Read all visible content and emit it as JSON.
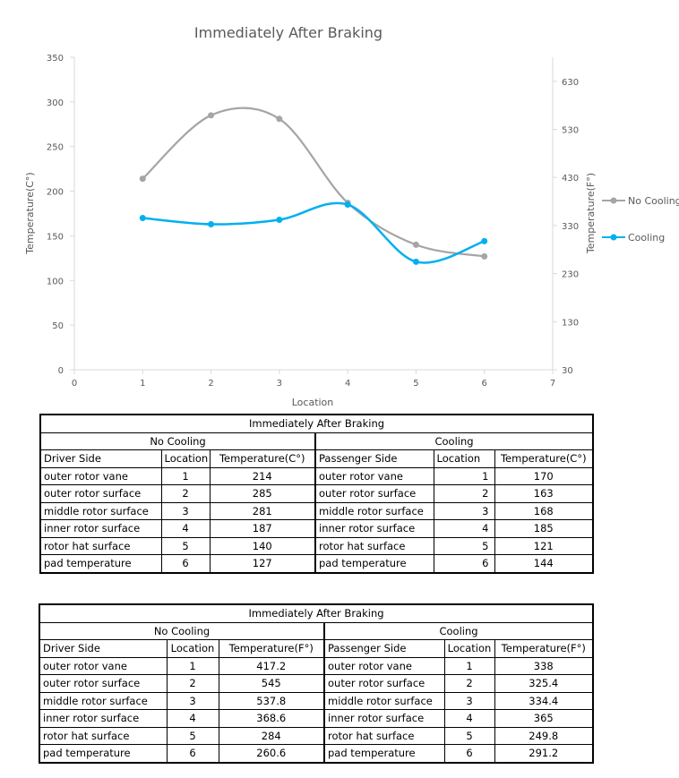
{
  "chart_data": {
    "type": "line",
    "title": "Immediately After Braking",
    "xlabel": "Location",
    "ylabel": "Temperature(C°)",
    "y2label": "Temperature(F°)",
    "xlim": [
      0,
      7
    ],
    "ylim": [
      0,
      350
    ],
    "y2lim": [
      30,
      680
    ],
    "xticks": [
      "0",
      "1",
      "2",
      "3",
      "4",
      "5",
      "6",
      "7"
    ],
    "yticks": [
      "0",
      "50",
      "100",
      "150",
      "200",
      "250",
      "300",
      "350"
    ],
    "y2ticks": [
      "30",
      "130",
      "230",
      "330",
      "430",
      "530",
      "630"
    ],
    "x": [
      1,
      2,
      3,
      4,
      5,
      6
    ],
    "series": [
      {
        "name": "No Cooling",
        "values": [
          214,
          285,
          281,
          187,
          140,
          127
        ],
        "color": "#a5a5a5"
      },
      {
        "name": "Cooling",
        "values": [
          170,
          163,
          168,
          185,
          121,
          144
        ],
        "color": "#00b0f0"
      }
    ],
    "grid": false,
    "legend": "right",
    "smooth": true
  },
  "table_c": {
    "title": "Immediately After Braking",
    "left_group": "No Cooling",
    "right_group": "Cooling",
    "left_headers": [
      "Driver Side",
      "Location",
      "Temperature(C°)"
    ],
    "right_headers": [
      "Passenger Side",
      "Location",
      "Temperature(C°)"
    ],
    "left_rows": [
      [
        "outer rotor vane",
        "1",
        "214"
      ],
      [
        "outer rotor surface",
        "2",
        "285"
      ],
      [
        "middle rotor surface",
        "3",
        "281"
      ],
      [
        "inner rotor surface",
        "4",
        "187"
      ],
      [
        "rotor hat surface",
        "5",
        "140"
      ],
      [
        "pad temperature",
        "6",
        "127"
      ]
    ],
    "right_rows": [
      [
        "outer rotor vane",
        "1",
        "170"
      ],
      [
        "outer rotor surface",
        "2",
        "163"
      ],
      [
        "middle rotor surface",
        "3",
        "168"
      ],
      [
        "inner rotor surface",
        "4",
        "185"
      ],
      [
        "rotor hat surface",
        "5",
        "121"
      ],
      [
        "pad temperature",
        "6",
        "144"
      ]
    ]
  },
  "table_f": {
    "title": "Immediately After Braking",
    "left_group": "No Cooling",
    "right_group": "Cooling",
    "left_headers": [
      "Driver Side",
      "Location",
      "Temperature(F°)"
    ],
    "right_headers": [
      "Passenger Side",
      "Location",
      "Temperature(F°)"
    ],
    "left_rows": [
      [
        "outer rotor vane",
        "1",
        "417.2"
      ],
      [
        "outer rotor surface",
        "2",
        "545"
      ],
      [
        "middle rotor surface",
        "3",
        "537.8"
      ],
      [
        "inner rotor surface",
        "4",
        "368.6"
      ],
      [
        "rotor hat surface",
        "5",
        "284"
      ],
      [
        "pad temperature",
        "6",
        "260.6"
      ]
    ],
    "right_rows": [
      [
        "outer rotor vane",
        "1",
        "338"
      ],
      [
        "outer rotor surface",
        "2",
        "325.4"
      ],
      [
        "middle rotor surface",
        "3",
        "334.4"
      ],
      [
        "inner rotor surface",
        "4",
        "365"
      ],
      [
        "rotor hat surface",
        "5",
        "249.8"
      ],
      [
        "pad temperature",
        "6",
        "291.2"
      ]
    ]
  }
}
